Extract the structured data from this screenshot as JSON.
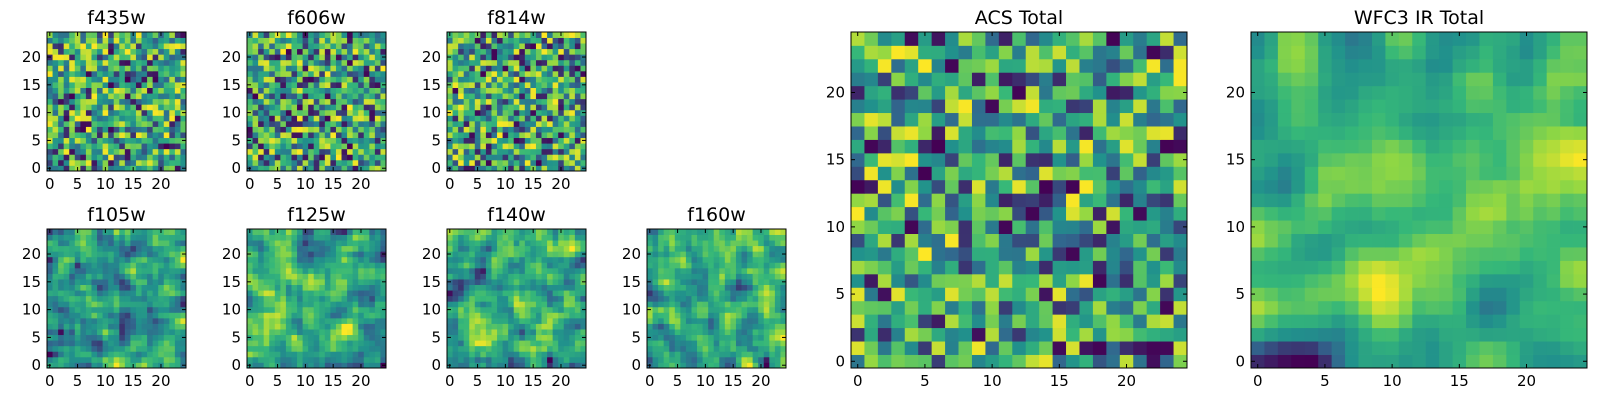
{
  "figure": {
    "colormap": [
      "#440154",
      "#31688e",
      "#21918c",
      "#35b779",
      "#90d743",
      "#fde725"
    ]
  },
  "chart_data": [
    {
      "type": "heatmap",
      "title": "f435w",
      "size": 25,
      "seed": 11,
      "smooth": 0,
      "xticks": [
        0,
        5,
        10,
        15,
        20
      ],
      "yticks": [
        0,
        5,
        10,
        15,
        20
      ]
    },
    {
      "type": "heatmap",
      "title": "f606w",
      "size": 25,
      "seed": 23,
      "smooth": 0,
      "xticks": [
        0,
        5,
        10,
        15,
        20
      ],
      "yticks": [
        0,
        5,
        10,
        15,
        20
      ]
    },
    {
      "type": "heatmap",
      "title": "f814w",
      "size": 25,
      "seed": 37,
      "smooth": 0,
      "xticks": [
        0,
        5,
        10,
        15,
        20
      ],
      "yticks": [
        0,
        5,
        10,
        15,
        20
      ]
    },
    {
      "type": "heatmap",
      "title": "f105w",
      "size": 25,
      "seed": 41,
      "smooth": 1,
      "xticks": [
        0,
        5,
        10,
        15,
        20
      ],
      "yticks": [
        0,
        5,
        10,
        15,
        20
      ]
    },
    {
      "type": "heatmap",
      "title": "f125w",
      "size": 25,
      "seed": 53,
      "smooth": 1,
      "xticks": [
        0,
        5,
        10,
        15,
        20
      ],
      "yticks": [
        0,
        5,
        10,
        15,
        20
      ]
    },
    {
      "type": "heatmap",
      "title": "f140w",
      "size": 25,
      "seed": 67,
      "smooth": 1,
      "xticks": [
        0,
        5,
        10,
        15,
        20
      ],
      "yticks": [
        0,
        5,
        10,
        15,
        20
      ]
    },
    {
      "type": "heatmap",
      "title": "f160w",
      "size": 25,
      "seed": 79,
      "smooth": 1,
      "xticks": [
        0,
        5,
        10,
        15,
        20
      ],
      "yticks": [
        0,
        5,
        10,
        15,
        20
      ]
    },
    {
      "type": "heatmap",
      "title": "ACS Total",
      "size": 25,
      "seed": 83,
      "smooth": 0,
      "xticks": [
        0,
        5,
        10,
        15,
        20
      ],
      "yticks": [
        0,
        5,
        10,
        15,
        20
      ]
    },
    {
      "type": "heatmap",
      "title": "WFC3 IR Total",
      "size": 25,
      "seed": 97,
      "smooth": 2,
      "xticks": [
        0,
        5,
        10,
        15,
        20
      ],
      "yticks": [
        0,
        5,
        10,
        15,
        20
      ]
    }
  ]
}
